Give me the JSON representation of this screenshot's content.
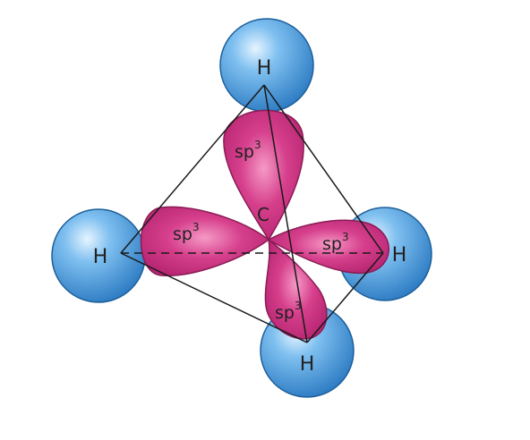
{
  "labels": {
    "h_top": "H",
    "h_left": "H",
    "h_right": "H",
    "h_bottom": "H",
    "carbon": "C",
    "orb_top_base": "sp",
    "orb_top_sup": "3",
    "orb_left_base": "sp",
    "orb_left_sup": "3",
    "orb_right_base": "sp",
    "orb_right_sup": "3",
    "orb_bottom_base": "sp",
    "orb_bottom_sup": "3"
  },
  "colors": {
    "hydrogen_fill": "#58a8e4",
    "hydrogen_stroke": "#1c5f9a",
    "orbital_fill": "#d63f8c",
    "orbital_stroke": "#8a1c55",
    "edge": "#1a1a1a"
  }
}
